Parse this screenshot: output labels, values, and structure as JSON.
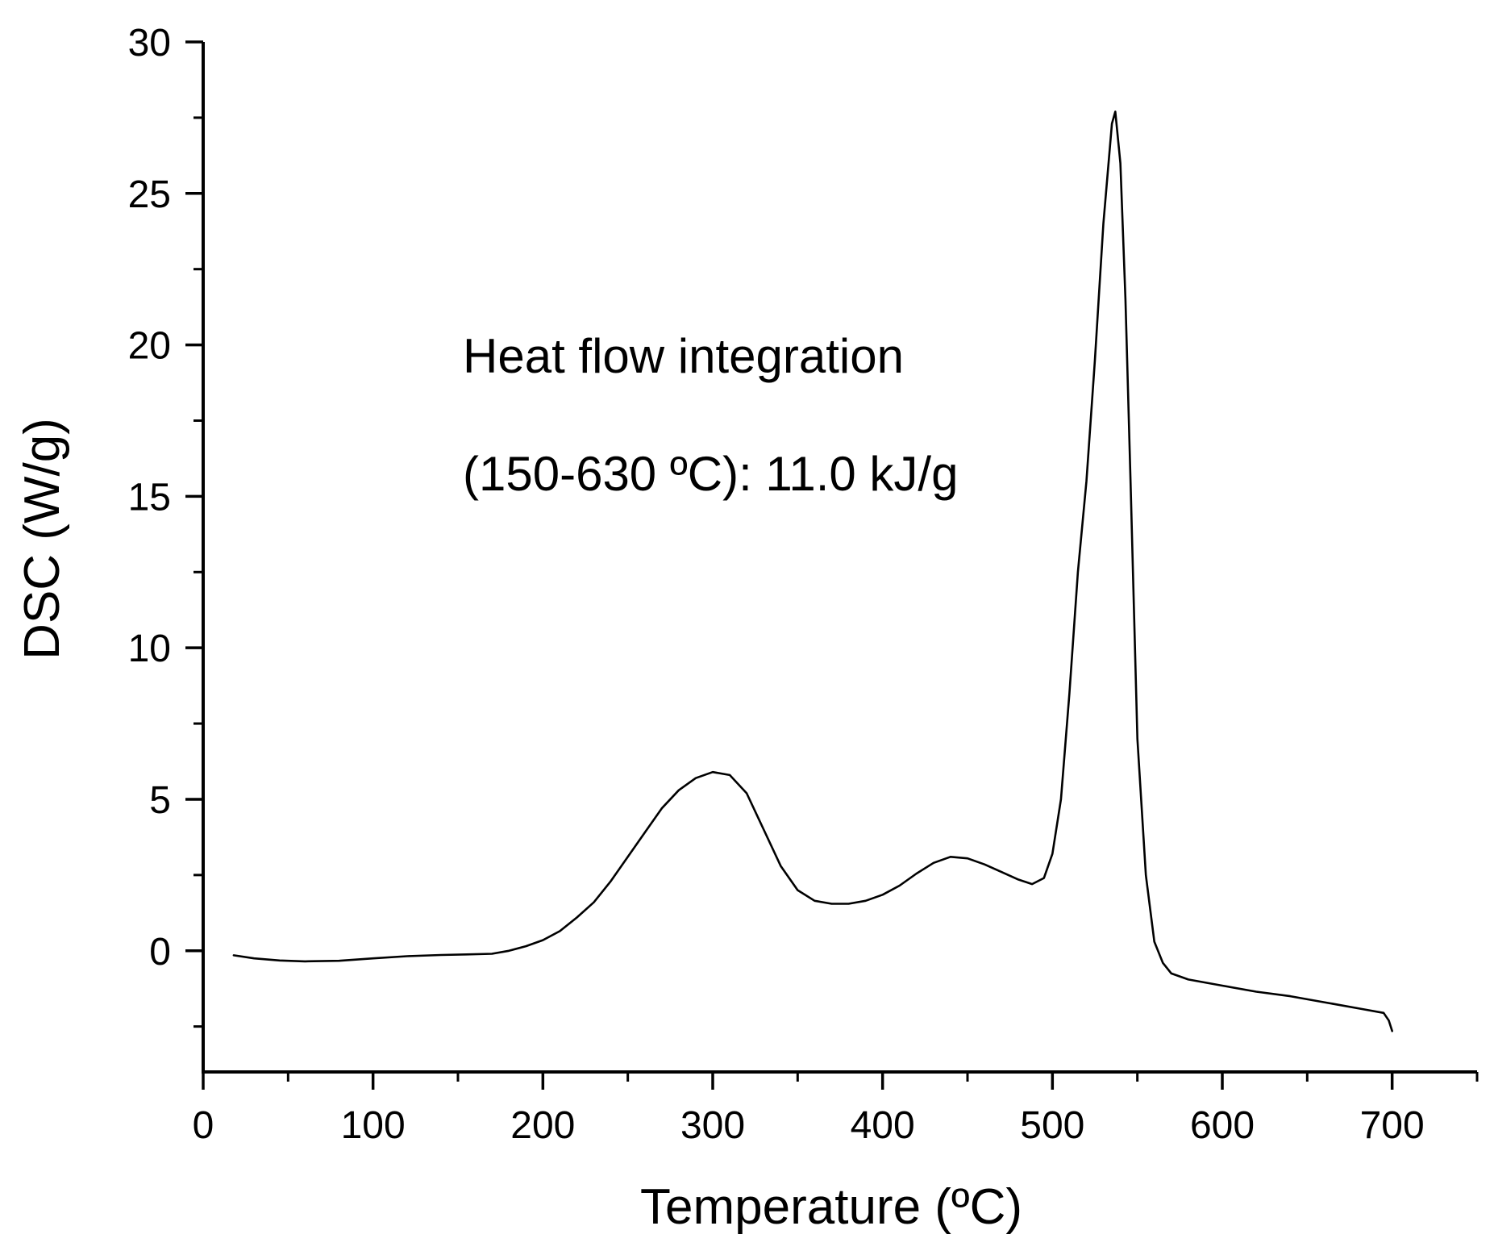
{
  "chart_data": {
    "type": "line",
    "title": "",
    "xlabel": "Temperature (ºC)",
    "ylabel": "DSC (W/g)",
    "xlim": [
      0,
      750
    ],
    "ylim": [
      -4,
      30
    ],
    "x_ticks": [
      0,
      100,
      200,
      300,
      400,
      500,
      600,
      700
    ],
    "y_ticks": [
      0,
      5,
      10,
      15,
      20,
      25,
      30
    ],
    "grid": false,
    "legend": "none",
    "line_color": "#000000",
    "annotations": [
      "Heat flow integration",
      "(150-630 ºC): 11.0 kJ/g"
    ],
    "series": [
      {
        "x": [
          18,
          30,
          45,
          60,
          80,
          100,
          120,
          140,
          155,
          170,
          180,
          190,
          200,
          210,
          220,
          230,
          240,
          250,
          260,
          270,
          280,
          290,
          300,
          310,
          320,
          330,
          340,
          350,
          360,
          370,
          380,
          390,
          400,
          410,
          420,
          430,
          440,
          450,
          460,
          470,
          480,
          488,
          495,
          500,
          505,
          510,
          515,
          520,
          525,
          530,
          535,
          537,
          540,
          543,
          546,
          550,
          555,
          560,
          565,
          570,
          580,
          600,
          620,
          640,
          660,
          680,
          695,
          698,
          700
        ],
        "y": [
          -0.15,
          -0.25,
          -0.32,
          -0.35,
          -0.33,
          -0.25,
          -0.18,
          -0.14,
          -0.12,
          -0.1,
          0.0,
          0.15,
          0.35,
          0.65,
          1.1,
          1.6,
          2.3,
          3.1,
          3.9,
          4.7,
          5.3,
          5.7,
          5.9,
          5.8,
          5.2,
          4.0,
          2.8,
          2.0,
          1.65,
          1.55,
          1.55,
          1.65,
          1.85,
          2.15,
          2.55,
          2.9,
          3.1,
          3.05,
          2.85,
          2.6,
          2.35,
          2.2,
          2.4,
          3.2,
          5.0,
          8.5,
          12.5,
          15.5,
          19.5,
          24.0,
          27.3,
          27.7,
          26.0,
          21.5,
          15.5,
          7.0,
          2.5,
          0.3,
          -0.4,
          -0.75,
          -0.95,
          -1.15,
          -1.35,
          -1.5,
          -1.7,
          -1.9,
          -2.05,
          -2.3,
          -2.65
        ]
      }
    ]
  }
}
